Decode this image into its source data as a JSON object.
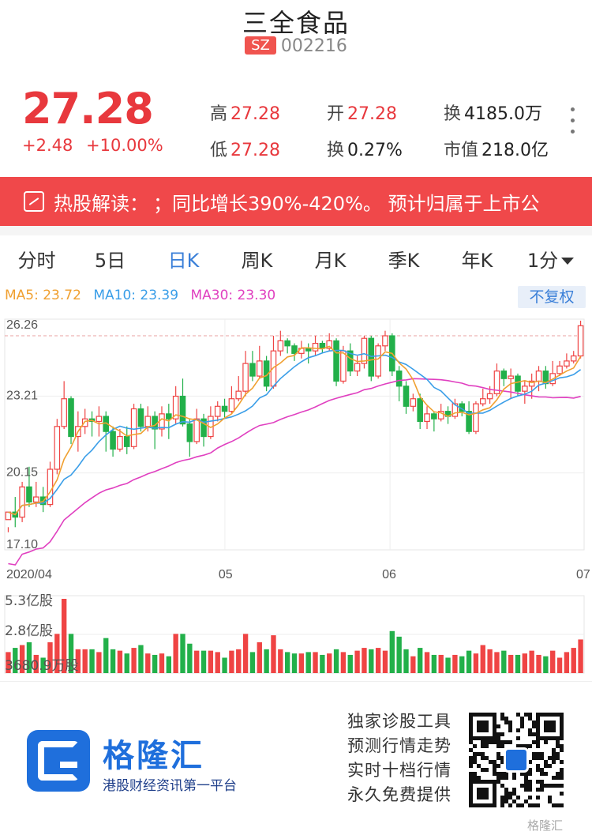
{
  "header": {
    "title": "三全食品",
    "market": "SZ",
    "code": "002216"
  },
  "quote": {
    "price": "27.28",
    "change": "+2.48",
    "change_pct": "+10.00%",
    "high_label": "高",
    "high": "27.28",
    "open_label": "开",
    "open": "27.28",
    "turnover_label": "换",
    "turnover_amount": "4185.0万",
    "low_label": "低",
    "low": "27.28",
    "turnover_rate_label": "换",
    "turnover_rate": "0.27%",
    "mktcap_label": "市值",
    "mktcap": "218.0亿"
  },
  "banner": {
    "label": "热股解读：",
    "text": "；同比增长390%-420%。 预计归属于上市公"
  },
  "tabs": [
    "分时",
    "5日",
    "日K",
    "周K",
    "月K",
    "季K",
    "年K",
    "1分"
  ],
  "active_tab": "日K",
  "ma": {
    "ma5": "MA5: 23.72",
    "ma10": "MA10: 23.39",
    "ma30": "MA30: 23.30",
    "ma5_color": "#f0a030",
    "ma10_color": "#3a9ee8",
    "ma30_color": "#e040c0"
  },
  "adjust_button": "不复权",
  "chart_data": {
    "type": "candlestick",
    "price_axis_labels": [
      "26.26",
      "23.21",
      "20.15",
      "17.10"
    ],
    "ylim": [
      17.1,
      26.26
    ],
    "x_labels": [
      "2020/04",
      "05",
      "06",
      "07"
    ],
    "volume_axis_labels": [
      "5.3亿股",
      "2.8亿股",
      "3680.9万股"
    ],
    "up_color": "#ef4444",
    "down_color": "#22b04a",
    "reference_line": 25.6,
    "candles": [
      [
        18.3,
        18.6,
        18.0,
        17.8,
        1.5
      ],
      [
        18.6,
        18.4,
        19.2,
        18.0,
        1.8
      ],
      [
        18.4,
        19.6,
        19.8,
        18.2,
        2.0
      ],
      [
        19.6,
        19.0,
        20.4,
        18.8,
        2.2
      ],
      [
        19.0,
        19.2,
        19.8,
        18.8,
        1.3
      ],
      [
        19.2,
        18.9,
        19.6,
        18.6,
        1.1
      ],
      [
        18.9,
        20.3,
        20.6,
        18.8,
        2.2
      ],
      [
        20.3,
        22.0,
        22.3,
        20.1,
        2.8
      ],
      [
        22.0,
        23.1,
        23.8,
        21.9,
        5.3
      ],
      [
        23.1,
        21.6,
        23.2,
        21.3,
        2.8
      ],
      [
        21.6,
        22.0,
        22.6,
        21.0,
        1.7
      ],
      [
        22.0,
        22.3,
        22.7,
        21.7,
        1.7
      ],
      [
        22.3,
        22.2,
        22.6,
        21.6,
        1.7
      ],
      [
        22.2,
        22.4,
        22.8,
        21.6,
        1.5
      ],
      [
        22.4,
        21.8,
        22.6,
        21.0,
        2.5
      ],
      [
        21.8,
        21.1,
        22.0,
        20.8,
        1.7
      ],
      [
        21.1,
        21.6,
        21.9,
        21.0,
        1.6
      ],
      [
        21.6,
        21.2,
        22.0,
        20.9,
        1.4
      ],
      [
        21.2,
        22.7,
        22.9,
        21.1,
        1.8
      ],
      [
        22.7,
        22.0,
        22.9,
        21.8,
        2.0
      ],
      [
        22.0,
        22.4,
        22.8,
        21.8,
        1.4
      ],
      [
        22.4,
        21.9,
        22.6,
        21.1,
        1.3
      ],
      [
        21.9,
        22.5,
        22.8,
        21.6,
        1.4
      ],
      [
        22.5,
        22.3,
        22.9,
        21.5,
        1.2
      ],
      [
        22.3,
        23.2,
        23.6,
        22.1,
        2.8
      ],
      [
        23.2,
        22.1,
        23.9,
        22.0,
        2.8
      ],
      [
        22.1,
        21.4,
        22.3,
        20.8,
        2.1
      ],
      [
        21.4,
        22.3,
        22.7,
        21.3,
        1.6
      ],
      [
        22.3,
        21.6,
        22.5,
        21.2,
        1.6
      ],
      [
        21.6,
        22.4,
        22.8,
        21.5,
        1.6
      ],
      [
        22.4,
        22.8,
        23.0,
        22.2,
        1.5
      ],
      [
        22.8,
        22.6,
        23.1,
        22.3,
        1.1
      ],
      [
        22.6,
        23.1,
        23.6,
        22.5,
        1.6
      ],
      [
        23.1,
        23.4,
        24.0,
        23.0,
        1.7
      ],
      [
        23.4,
        24.5,
        25.0,
        23.2,
        2.8
      ],
      [
        24.5,
        24.0,
        25.0,
        23.8,
        1.5
      ],
      [
        24.0,
        24.6,
        25.2,
        23.9,
        2.2
      ],
      [
        24.6,
        23.6,
        24.8,
        23.4,
        1.7
      ],
      [
        23.6,
        25.0,
        25.6,
        23.5,
        2.7
      ],
      [
        25.0,
        25.4,
        25.8,
        24.8,
        1.7
      ],
      [
        25.4,
        25.2,
        25.5,
        24.9,
        1.5
      ],
      [
        25.2,
        24.9,
        25.3,
        24.6,
        1.4
      ],
      [
        24.9,
        25.1,
        25.4,
        24.7,
        1.4
      ],
      [
        25.1,
        25.0,
        25.3,
        24.5,
        1.5
      ],
      [
        25.0,
        25.3,
        25.6,
        24.8,
        1.5
      ],
      [
        25.3,
        25.1,
        25.4,
        24.9,
        1.3
      ],
      [
        25.1,
        25.4,
        25.7,
        25.0,
        1.4
      ],
      [
        25.4,
        23.8,
        25.5,
        23.6,
        1.7
      ],
      [
        23.8,
        25.0,
        25.2,
        23.7,
        1.5
      ],
      [
        25.0,
        24.2,
        25.3,
        24.0,
        1.3
      ],
      [
        24.2,
        24.5,
        24.8,
        24.0,
        1.6
      ],
      [
        24.5,
        25.5,
        25.6,
        24.3,
        1.8
      ],
      [
        25.5,
        24.0,
        25.6,
        23.8,
        1.7
      ],
      [
        24.0,
        25.2,
        25.3,
        23.9,
        1.8
      ],
      [
        25.2,
        25.6,
        25.8,
        25.0,
        1.6
      ],
      [
        25.6,
        24.2,
        25.7,
        24.0,
        3.0
      ],
      [
        24.2,
        23.6,
        24.4,
        23.0,
        2.6
      ],
      [
        23.6,
        22.8,
        23.8,
        22.5,
        1.7
      ],
      [
        22.8,
        23.1,
        23.3,
        22.6,
        1.2
      ],
      [
        23.1,
        22.2,
        23.3,
        21.9,
        1.8
      ],
      [
        22.2,
        22.5,
        22.8,
        21.9,
        1.5
      ],
      [
        22.5,
        22.3,
        22.6,
        21.8,
        1.3
      ],
      [
        22.3,
        22.6,
        22.9,
        22.2,
        1.3
      ],
      [
        22.6,
        22.4,
        22.8,
        22.1,
        1.1
      ],
      [
        22.4,
        22.9,
        23.1,
        22.3,
        1.3
      ],
      [
        22.9,
        22.6,
        23.0,
        22.4,
        1.2
      ],
      [
        22.6,
        21.8,
        23.0,
        21.7,
        1.6
      ],
      [
        21.8,
        22.9,
        23.0,
        21.7,
        1.4
      ],
      [
        22.9,
        23.1,
        23.5,
        22.8,
        2.0
      ],
      [
        23.1,
        23.3,
        23.6,
        22.9,
        1.7
      ],
      [
        23.3,
        24.2,
        24.5,
        23.2,
        1.5
      ],
      [
        24.2,
        23.9,
        24.3,
        23.6,
        1.6
      ],
      [
        23.9,
        24.0,
        24.3,
        23.1,
        1.3
      ],
      [
        24.0,
        23.4,
        24.1,
        23.2,
        1.3
      ],
      [
        23.4,
        23.6,
        23.8,
        22.9,
        1.4
      ],
      [
        23.6,
        23.8,
        24.1,
        23.1,
        1.6
      ],
      [
        23.8,
        24.2,
        24.4,
        23.4,
        1.3
      ],
      [
        24.2,
        23.7,
        24.4,
        23.5,
        1.2
      ],
      [
        23.7,
        24.1,
        24.6,
        23.6,
        1.6
      ],
      [
        24.1,
        24.4,
        24.6,
        24.0,
        1.1
      ],
      [
        24.4,
        24.6,
        24.9,
        24.3,
        1.5
      ],
      [
        24.6,
        24.8,
        25.0,
        24.5,
        1.8
      ],
      [
        24.8,
        26.0,
        26.2,
        24.7,
        2.4
      ]
    ]
  },
  "footer": {
    "brand": "格隆汇",
    "slogan": "港股财经资讯第一平台",
    "promo": [
      "独家诊股工具",
      "预测行情走势",
      "实时十档行情",
      "永久免费提供"
    ],
    "watermark": "格隆汇"
  }
}
